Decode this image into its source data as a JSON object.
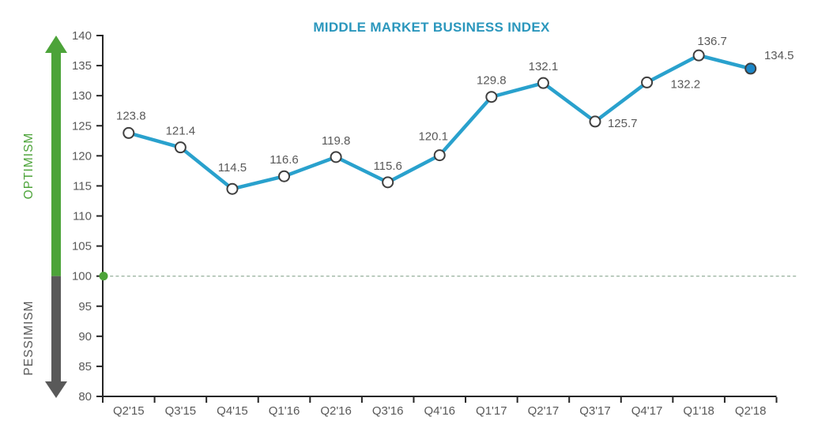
{
  "chart_data": {
    "type": "line",
    "title": "MIDDLE MARKET BUSINESS INDEX",
    "categories": [
      "Q2'15",
      "Q3'15",
      "Q4'15",
      "Q1'16",
      "Q2'16",
      "Q3'16",
      "Q4'16",
      "Q1'17",
      "Q2'17",
      "Q3'17",
      "Q4'17",
      "Q1'18",
      "Q2'18"
    ],
    "values": [
      123.8,
      121.4,
      114.5,
      116.6,
      119.8,
      115.6,
      120.1,
      129.8,
      132.1,
      125.7,
      132.2,
      136.7,
      134.5
    ],
    "xlabel": "",
    "ylabel": "",
    "ylim": [
      80,
      140
    ],
    "ytick_step": 5,
    "grid": false,
    "legend": "none",
    "baseline": {
      "value": 100,
      "style": "dashed",
      "marker": "green-dot"
    },
    "annotations": {
      "optimism": "OPTIMISM",
      "pessimism": "PESSIMISM"
    },
    "last_point_emphasized": true,
    "colors": {
      "line": "#29A1CD",
      "title": "#2B97BD",
      "marker_fill": "#FFFFFF",
      "marker_stroke": "#3F3F3F",
      "last_marker_fill": "#1B87C9",
      "optimism_green": "#4CA339",
      "pessimism_gray": "#595959",
      "axis": "#262626",
      "tick_label": "#595959",
      "data_label": "#595959",
      "baseline_dash": "#9FB6A4",
      "background": "#FFFFFF"
    }
  }
}
